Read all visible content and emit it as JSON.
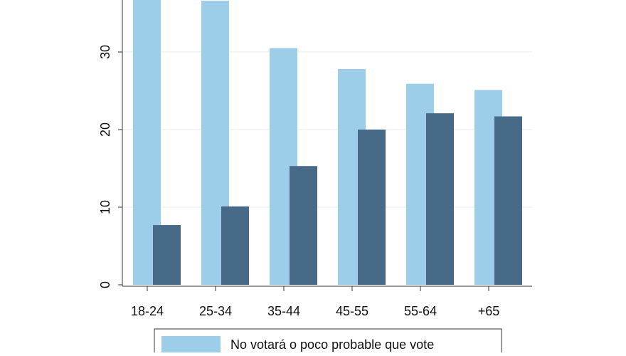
{
  "chart_data": {
    "type": "bar",
    "title": "",
    "xlabel": "",
    "ylabel": "",
    "categories": [
      "18-24",
      "25-34",
      "35-44",
      "45-55",
      "55-64",
      "+65"
    ],
    "series": [
      {
        "name": "No votará o poco probable que vote",
        "color": "#9ccde9",
        "values": [
          40,
          36.6,
          30.5,
          27.8,
          25.9,
          25.1
        ]
      },
      {
        "name": "",
        "color": "#476a88",
        "values": [
          7.7,
          10.1,
          15.3,
          20.0,
          22.1,
          21.7
        ]
      }
    ],
    "yticks": [
      "0",
      "10",
      "20",
      "30"
    ],
    "ytick_values": [
      0,
      10,
      20,
      30
    ],
    "ylim": [
      0,
      36.7
    ],
    "grid": true,
    "legend_position": "bottom"
  }
}
